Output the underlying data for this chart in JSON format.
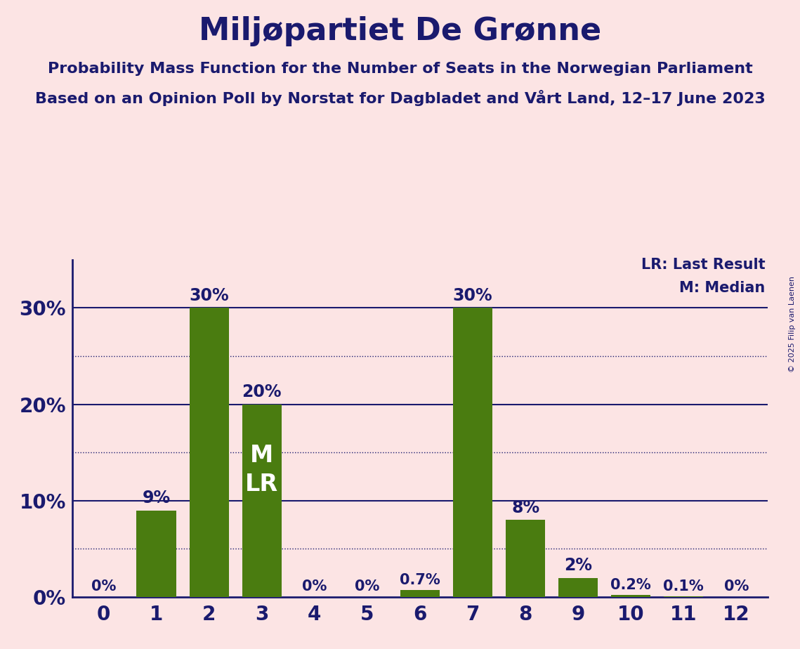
{
  "title": "Miljøpartiet De Grønne",
  "subtitle1": "Probability Mass Function for the Number of Seats in the Norwegian Parliament",
  "subtitle2": "Based on an Opinion Poll by Norstat for Dagbladet and Vårt Land, 12–17 June 2023",
  "copyright": "© 2025 Filip van Laenen",
  "categories": [
    0,
    1,
    2,
    3,
    4,
    5,
    6,
    7,
    8,
    9,
    10,
    11,
    12
  ],
  "values": [
    0.0,
    9.0,
    30.0,
    20.0,
    0.0,
    0.0,
    0.7,
    30.0,
    8.0,
    2.0,
    0.2,
    0.1,
    0.0
  ],
  "bar_color": "#4a7c10",
  "background_color": "#fce4e4",
  "title_color": "#1a1a6e",
  "axis_color": "#1a1a6e",
  "bar_label_color_dark": "#1a1a6e",
  "bar_label_color_light": "#ffffff",
  "yticks": [
    0,
    10,
    20,
    30
  ],
  "ylim": [
    0,
    35
  ],
  "median_seat": 3,
  "lr_seat": 3,
  "legend_lr": "LR: Last Result",
  "legend_m": "M: Median",
  "value_labels": [
    "0%",
    "9%",
    "30%",
    "20%",
    "0%",
    "0%",
    "0.7%",
    "30%",
    "8%",
    "2%",
    "0.2%",
    "0.1%",
    "0%"
  ]
}
